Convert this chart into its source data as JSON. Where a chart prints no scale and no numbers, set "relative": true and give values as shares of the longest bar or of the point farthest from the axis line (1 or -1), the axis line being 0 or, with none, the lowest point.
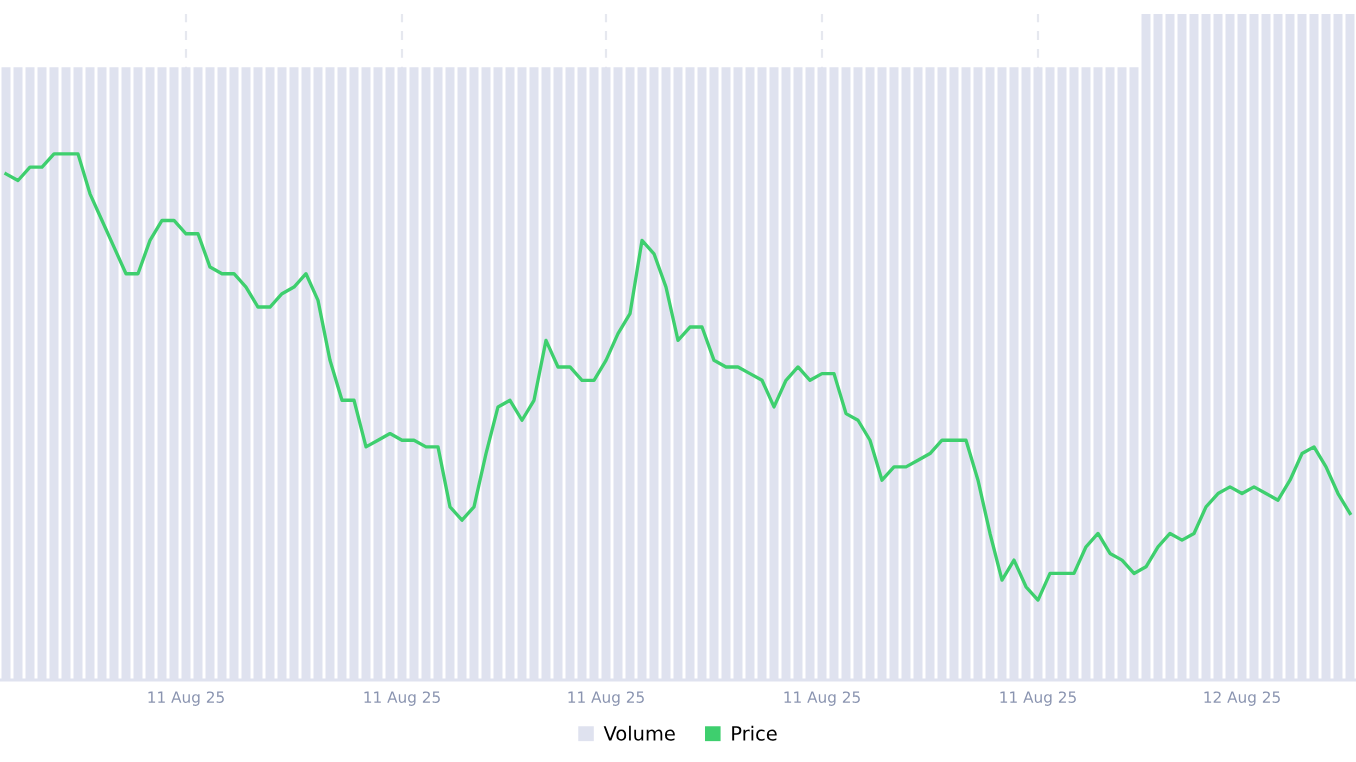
{
  "chart_data": {
    "type": "bar",
    "relative": true,
    "grid": "x",
    "legend": "bottom",
    "tick_labels": "x",
    "categories": [
      null,
      null,
      null,
      null,
      null,
      null,
      null,
      null,
      null,
      null,
      null,
      null,
      null,
      null,
      null,
      "11 Aug 25",
      null,
      null,
      null,
      null,
      null,
      null,
      null,
      null,
      null,
      null,
      null,
      null,
      null,
      null,
      null,
      null,
      null,
      "11 Aug 25",
      null,
      null,
      null,
      null,
      null,
      null,
      null,
      null,
      null,
      null,
      null,
      null,
      null,
      null,
      null,
      null,
      "11 Aug 25",
      null,
      null,
      null,
      null,
      null,
      null,
      null,
      null,
      null,
      null,
      null,
      null,
      null,
      null,
      null,
      null,
      null,
      "11 Aug 25",
      null,
      null,
      null,
      null,
      null,
      null,
      null,
      null,
      null,
      null,
      null,
      null,
      null,
      null,
      null,
      null,
      null,
      "11 Aug 25",
      null,
      null,
      null,
      null,
      null,
      null,
      null,
      null,
      null,
      null,
      null,
      null,
      null,
      null,
      null,
      null,
      "12 Aug 25",
      null,
      null,
      null,
      null,
      null,
      null,
      null,
      null,
      null
    ],
    "series": [
      {
        "name": "Volume",
        "color": "#dfe2ef",
        "values": [
          0.92,
          0.92,
          0.92,
          0.92,
          0.92,
          0.92,
          0.92,
          0.92,
          0.92,
          0.92,
          0.92,
          0.92,
          0.92,
          0.92,
          0.92,
          0.92,
          0.92,
          0.92,
          0.92,
          0.92,
          0.92,
          0.92,
          0.92,
          0.92,
          0.92,
          0.92,
          0.92,
          0.92,
          0.92,
          0.92,
          0.92,
          0.92,
          0.92,
          0.92,
          0.92,
          0.92,
          0.92,
          0.92,
          0.92,
          0.92,
          0.92,
          0.92,
          0.92,
          0.92,
          0.92,
          0.92,
          0.92,
          0.92,
          0.92,
          0.92,
          0.92,
          0.92,
          0.92,
          0.92,
          0.92,
          0.92,
          0.92,
          0.92,
          0.92,
          0.92,
          0.92,
          0.92,
          0.92,
          0.92,
          0.92,
          0.92,
          0.92,
          0.92,
          0.92,
          0.92,
          0.92,
          0.92,
          0.92,
          0.92,
          0.92,
          0.92,
          0.92,
          0.92,
          0.92,
          0.92,
          0.92,
          0.92,
          0.92,
          0.92,
          0.92,
          0.92,
          0.92,
          0.92,
          0.92,
          0.92,
          0.92,
          0.92,
          0.92,
          0.92,
          0.92,
          1,
          1,
          1,
          1,
          1,
          1,
          1,
          1,
          1,
          1,
          1,
          1,
          1,
          1,
          1,
          1,
          1,
          1
        ]
      },
      {
        "name": "Price",
        "type": "line",
        "color": "#3ecf6e",
        "values": [
          0.76,
          0.75,
          0.77,
          0.77,
          0.79,
          0.79,
          0.79,
          0.73,
          0.69,
          0.65,
          0.61,
          0.61,
          0.66,
          0.69,
          0.69,
          0.67,
          0.67,
          0.62,
          0.61,
          0.61,
          0.59,
          0.56,
          0.56,
          0.58,
          0.59,
          0.61,
          0.57,
          0.48,
          0.42,
          0.42,
          0.35,
          0.36,
          0.37,
          0.36,
          0.36,
          0.35,
          0.35,
          0.26,
          0.24,
          0.26,
          0.34,
          0.41,
          0.42,
          0.39,
          0.42,
          0.51,
          0.47,
          0.47,
          0.45,
          0.45,
          0.48,
          0.52,
          0.55,
          0.66,
          0.64,
          0.59,
          0.51,
          0.53,
          0.53,
          0.48,
          0.47,
          0.47,
          0.46,
          0.45,
          0.41,
          0.45,
          0.47,
          0.45,
          0.46,
          0.46,
          0.4,
          0.39,
          0.36,
          0.3,
          0.32,
          0.32,
          0.33,
          0.34,
          0.36,
          0.36,
          0.36,
          0.3,
          0.22,
          0.15,
          0.18,
          0.14,
          0.12,
          0.16,
          0.16,
          0.16,
          0.2,
          0.22,
          0.19,
          0.18,
          0.16,
          0.17,
          0.2,
          0.22,
          0.21,
          0.22,
          0.26,
          0.28,
          0.29,
          0.28,
          0.29,
          0.28,
          0.27,
          0.3,
          0.34,
          0.35,
          0.32,
          0.28,
          0.25
        ]
      }
    ]
  }
}
